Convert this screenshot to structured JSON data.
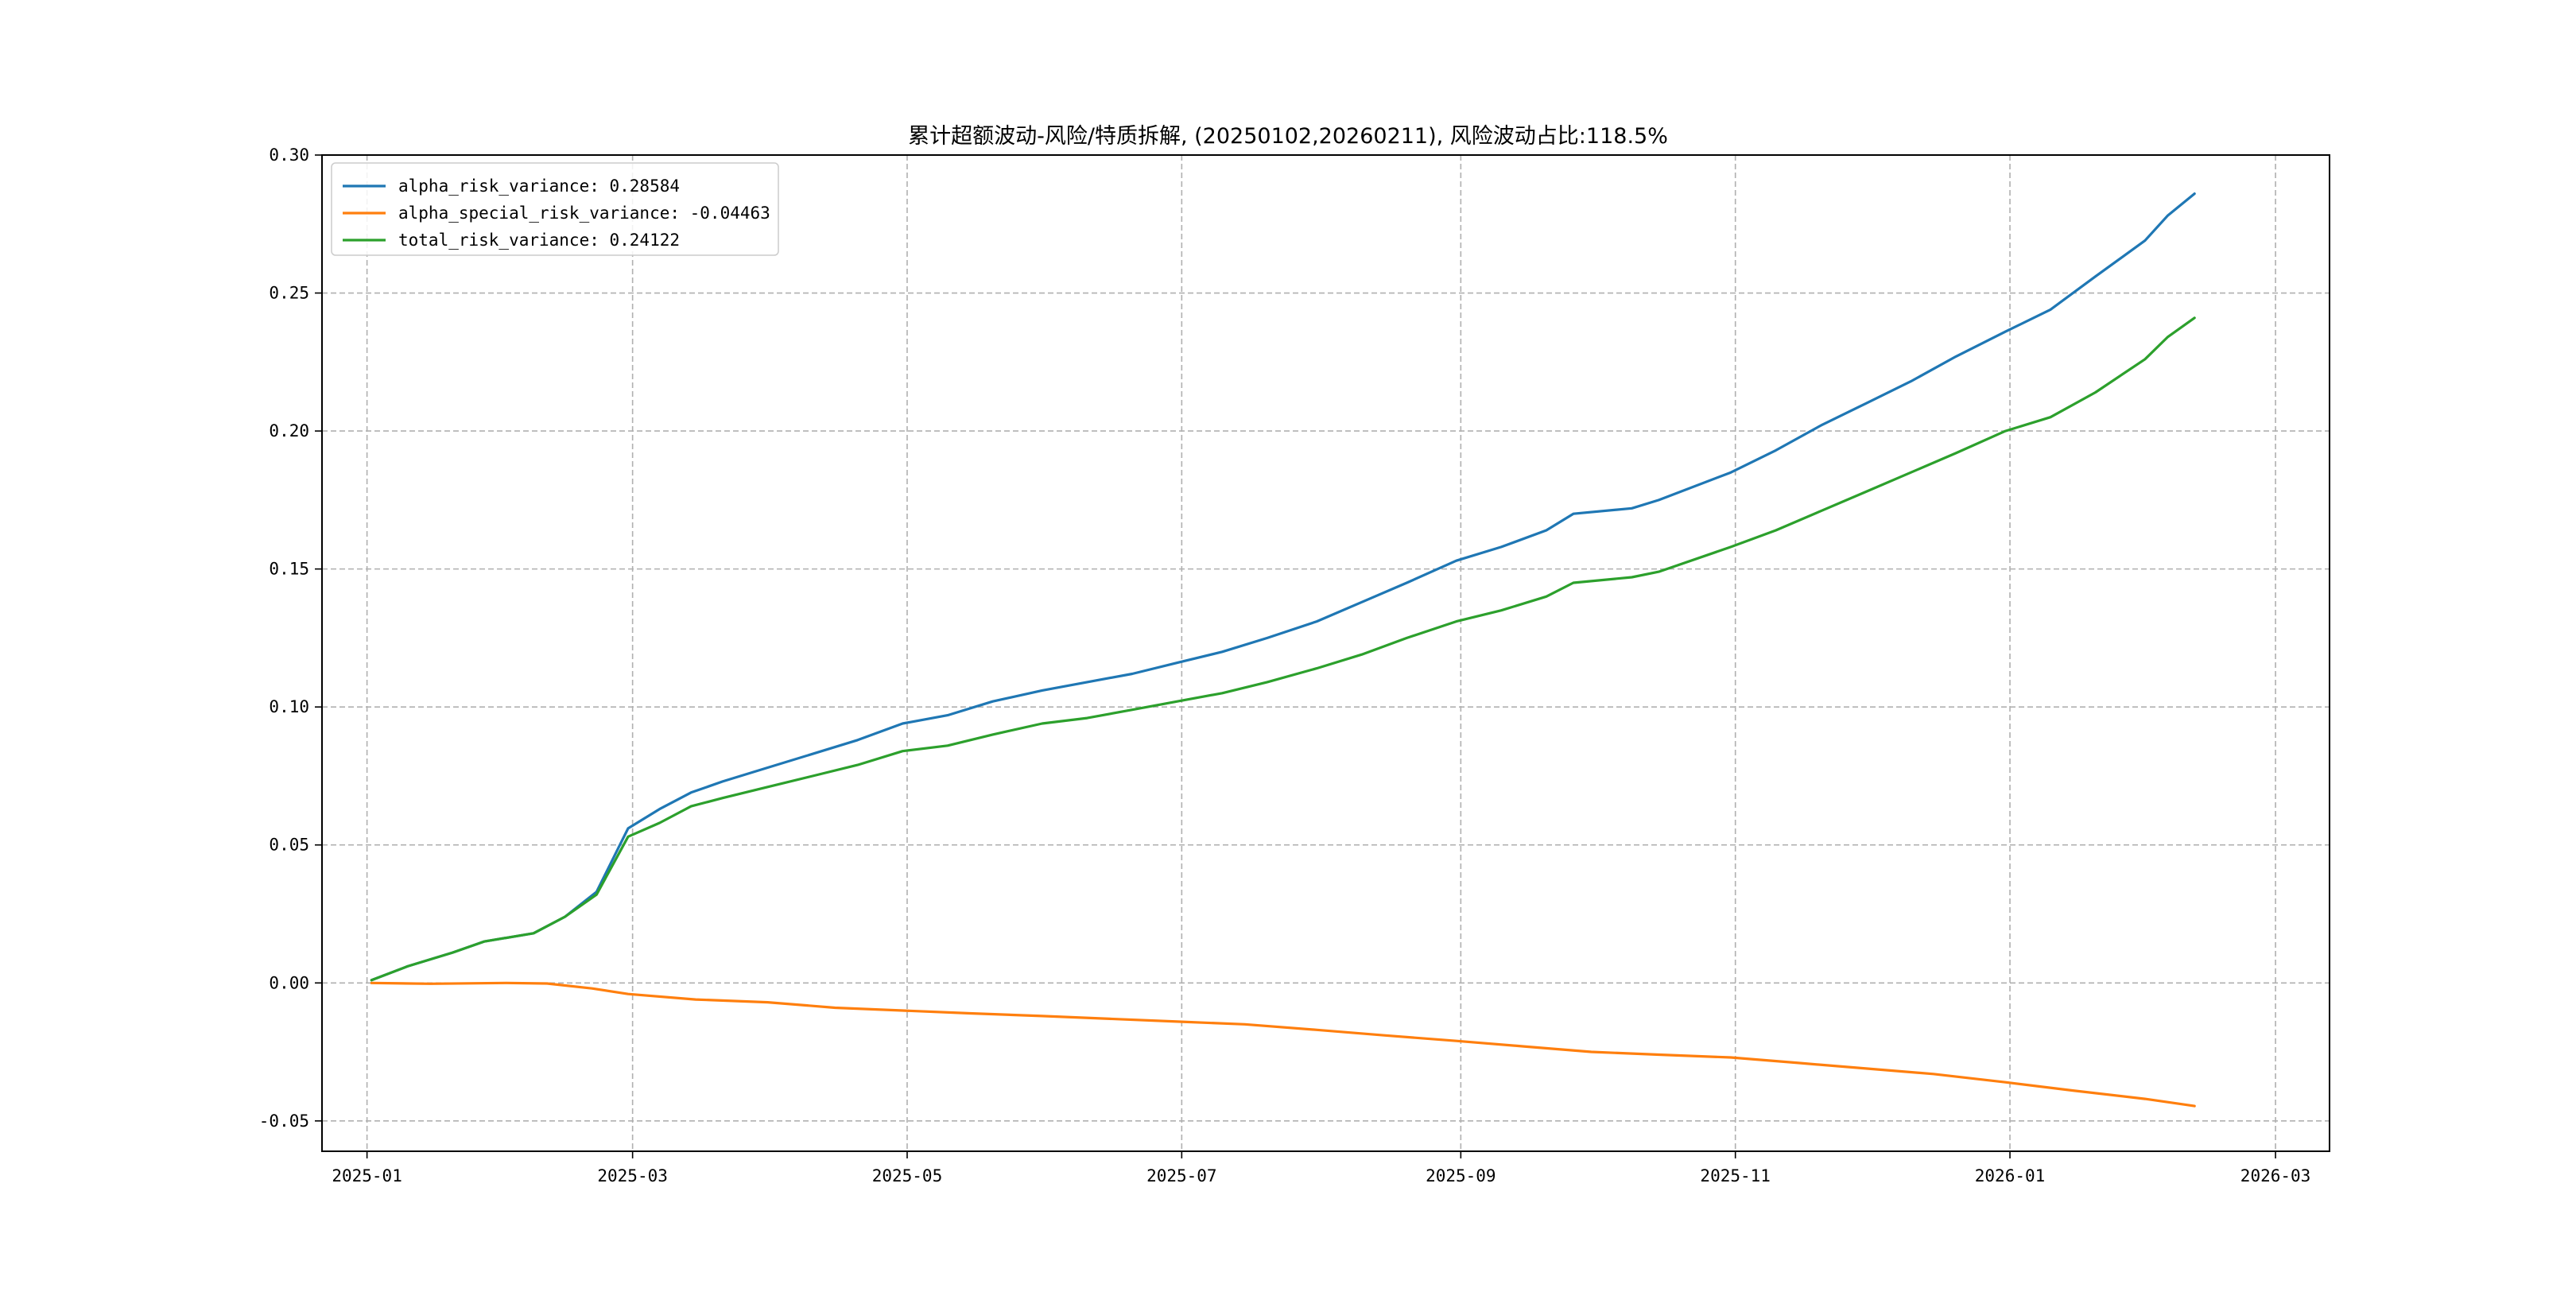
{
  "chart_data": {
    "type": "line",
    "title": "累计超额波动-风险/特质拆解, (20250102,20260211), 风险波动占比:118.5%",
    "xlabel": "",
    "ylabel": "",
    "xlim": [
      "2024-12-22",
      "2026-03-13"
    ],
    "ylim": [
      -0.061,
      0.3
    ],
    "x_ticks": [
      "2025-01",
      "2025-03",
      "2025-05",
      "2025-07",
      "2025-09",
      "2025-11",
      "2026-01",
      "2026-03"
    ],
    "y_ticks": [
      "0.30",
      "0.25",
      "0.20",
      "0.15",
      "0.10",
      "0.05",
      "0.00",
      "-0.05"
    ],
    "grid": true,
    "legend_position": "top-left",
    "series": [
      {
        "name": "alpha_risk_variance: 0.28584",
        "color": "#1f77b4",
        "points": [
          [
            "2025-01-02",
            0.001
          ],
          [
            "2025-01-10",
            0.006
          ],
          [
            "2025-01-20",
            0.011
          ],
          [
            "2025-01-27",
            0.015
          ],
          [
            "2025-02-07",
            0.018
          ],
          [
            "2025-02-14",
            0.024
          ],
          [
            "2025-02-21",
            0.033
          ],
          [
            "2025-02-28",
            0.056
          ],
          [
            "2025-03-07",
            0.063
          ],
          [
            "2025-03-14",
            0.069
          ],
          [
            "2025-03-21",
            0.073
          ],
          [
            "2025-03-31",
            0.078
          ],
          [
            "2025-04-10",
            0.083
          ],
          [
            "2025-04-20",
            0.088
          ],
          [
            "2025-04-30",
            0.094
          ],
          [
            "2025-05-10",
            0.097
          ],
          [
            "2025-05-20",
            0.102
          ],
          [
            "2025-05-31",
            0.106
          ],
          [
            "2025-06-10",
            0.109
          ],
          [
            "2025-06-20",
            0.112
          ],
          [
            "2025-06-30",
            0.116
          ],
          [
            "2025-07-10",
            0.12
          ],
          [
            "2025-07-20",
            0.125
          ],
          [
            "2025-07-31",
            0.131
          ],
          [
            "2025-08-10",
            0.138
          ],
          [
            "2025-08-20",
            0.145
          ],
          [
            "2025-08-31",
            0.153
          ],
          [
            "2025-09-10",
            0.158
          ],
          [
            "2025-09-20",
            0.164
          ],
          [
            "2025-09-26",
            0.17
          ],
          [
            "2025-10-09",
            0.172
          ],
          [
            "2025-10-15",
            0.175
          ],
          [
            "2025-10-31",
            0.185
          ],
          [
            "2025-11-10",
            0.193
          ],
          [
            "2025-11-20",
            0.202
          ],
          [
            "2025-11-30",
            0.21
          ],
          [
            "2025-12-10",
            0.218
          ],
          [
            "2025-12-20",
            0.227
          ],
          [
            "2025-12-31",
            0.236
          ],
          [
            "2026-01-10",
            0.244
          ],
          [
            "2026-01-20",
            0.256
          ],
          [
            "2026-01-31",
            0.269
          ],
          [
            "2026-02-05",
            0.278
          ],
          [
            "2026-02-11",
            0.286
          ]
        ]
      },
      {
        "name": "alpha_special_risk_variance: -0.04463",
        "color": "#ff7f0e",
        "points": [
          [
            "2025-01-02",
            0.0
          ],
          [
            "2025-01-15",
            -0.0003
          ],
          [
            "2025-02-01",
            0.0
          ],
          [
            "2025-02-10",
            -0.0002
          ],
          [
            "2025-02-20",
            -0.002
          ],
          [
            "2025-02-28",
            -0.004
          ],
          [
            "2025-03-15",
            -0.006
          ],
          [
            "2025-03-31",
            -0.007
          ],
          [
            "2025-04-15",
            -0.009
          ],
          [
            "2025-04-30",
            -0.01
          ],
          [
            "2025-05-15",
            -0.011
          ],
          [
            "2025-05-31",
            -0.012
          ],
          [
            "2025-06-15",
            -0.013
          ],
          [
            "2025-06-30",
            -0.014
          ],
          [
            "2025-07-15",
            -0.015
          ],
          [
            "2025-07-31",
            -0.017
          ],
          [
            "2025-08-15",
            -0.019
          ],
          [
            "2025-08-31",
            -0.021
          ],
          [
            "2025-09-15",
            -0.023
          ],
          [
            "2025-09-30",
            -0.025
          ],
          [
            "2025-10-15",
            -0.026
          ],
          [
            "2025-10-31",
            -0.027
          ],
          [
            "2025-11-15",
            -0.029
          ],
          [
            "2025-11-30",
            -0.031
          ],
          [
            "2025-12-15",
            -0.033
          ],
          [
            "2025-12-31",
            -0.036
          ],
          [
            "2026-01-15",
            -0.039
          ],
          [
            "2026-01-31",
            -0.042
          ],
          [
            "2026-02-11",
            -0.0446
          ]
        ]
      },
      {
        "name": "total_risk_variance: 0.24122",
        "color": "#2ca02c",
        "points": [
          [
            "2025-01-02",
            0.001
          ],
          [
            "2025-01-10",
            0.006
          ],
          [
            "2025-01-20",
            0.011
          ],
          [
            "2025-01-27",
            0.015
          ],
          [
            "2025-02-07",
            0.018
          ],
          [
            "2025-02-14",
            0.024
          ],
          [
            "2025-02-21",
            0.032
          ],
          [
            "2025-02-28",
            0.053
          ],
          [
            "2025-03-07",
            0.058
          ],
          [
            "2025-03-14",
            0.064
          ],
          [
            "2025-03-21",
            0.067
          ],
          [
            "2025-03-31",
            0.071
          ],
          [
            "2025-04-10",
            0.075
          ],
          [
            "2025-04-20",
            0.079
          ],
          [
            "2025-04-30",
            0.084
          ],
          [
            "2025-05-10",
            0.086
          ],
          [
            "2025-05-20",
            0.09
          ],
          [
            "2025-05-31",
            0.094
          ],
          [
            "2025-06-10",
            0.096
          ],
          [
            "2025-06-20",
            0.099
          ],
          [
            "2025-06-30",
            0.102
          ],
          [
            "2025-07-10",
            0.105
          ],
          [
            "2025-07-20",
            0.109
          ],
          [
            "2025-07-31",
            0.114
          ],
          [
            "2025-08-10",
            0.119
          ],
          [
            "2025-08-20",
            0.125
          ],
          [
            "2025-08-31",
            0.131
          ],
          [
            "2025-09-10",
            0.135
          ],
          [
            "2025-09-20",
            0.14
          ],
          [
            "2025-09-26",
            0.145
          ],
          [
            "2025-10-09",
            0.147
          ],
          [
            "2025-10-15",
            0.149
          ],
          [
            "2025-10-31",
            0.158
          ],
          [
            "2025-11-10",
            0.164
          ],
          [
            "2025-11-20",
            0.171
          ],
          [
            "2025-11-30",
            0.178
          ],
          [
            "2025-12-10",
            0.185
          ],
          [
            "2025-12-20",
            0.192
          ],
          [
            "2025-12-31",
            0.2
          ],
          [
            "2026-01-10",
            0.205
          ],
          [
            "2026-01-20",
            0.214
          ],
          [
            "2026-01-31",
            0.226
          ],
          [
            "2026-02-05",
            0.234
          ],
          [
            "2026-02-11",
            0.241
          ]
        ]
      }
    ]
  }
}
